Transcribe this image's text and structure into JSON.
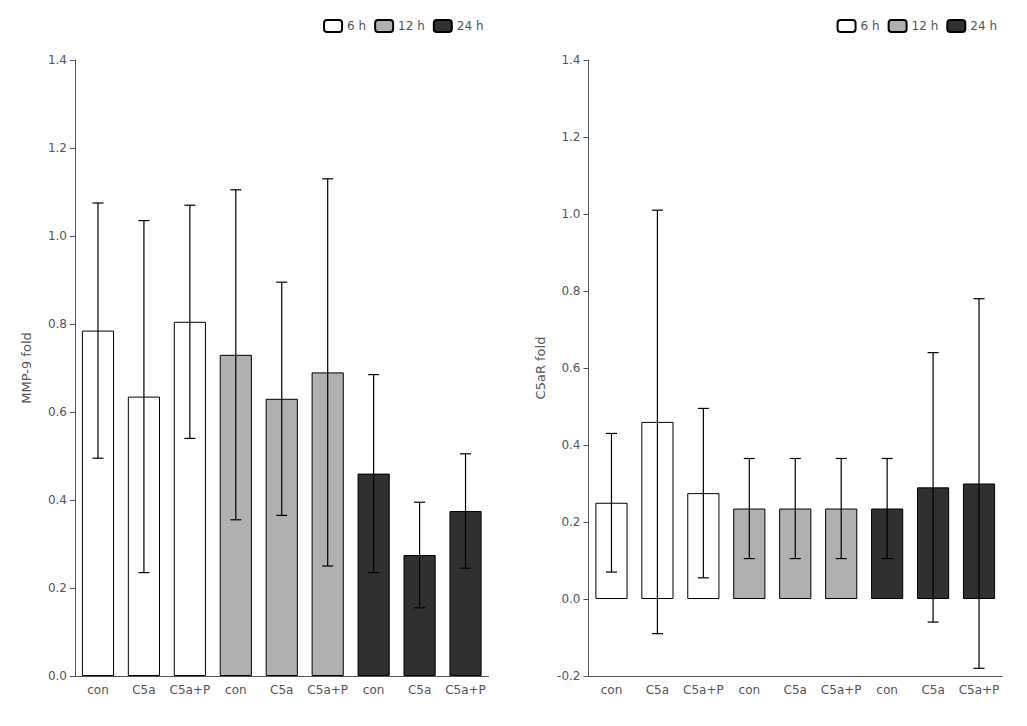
{
  "chart_data": [
    {
      "type": "bar",
      "ylabel": "MMP-9 fold",
      "categories": [
        "con",
        "C5a",
        "C5a+P",
        "con",
        "C5a",
        "C5a+P",
        "con",
        "C5a",
        "C5a+P"
      ],
      "series": [
        {
          "name": "6 h",
          "color": "#ffffff",
          "values": [
            0.785,
            0.635,
            0.805,
            null,
            null,
            null,
            null,
            null,
            null
          ],
          "errors": [
            0.29,
            0.4,
            0.265,
            null,
            null,
            null,
            null,
            null,
            null
          ]
        },
        {
          "name": "12 h",
          "color": "#b0b0b0",
          "values": [
            null,
            null,
            null,
            0.73,
            0.63,
            0.69,
            null,
            null,
            null
          ],
          "errors": [
            null,
            null,
            null,
            0.375,
            0.265,
            0.44,
            null,
            null,
            null
          ]
        },
        {
          "name": "24 h",
          "color": "#303030",
          "values": [
            null,
            null,
            null,
            null,
            null,
            null,
            0.46,
            0.275,
            0.375
          ],
          "errors": [
            null,
            null,
            null,
            null,
            null,
            null,
            0.225,
            0.12,
            0.13
          ]
        }
      ],
      "ylim": [
        0,
        1.4
      ],
      "yticks": [
        {
          "value": 0,
          "label": "0.0"
        },
        0.2,
        0.4,
        0.6,
        0.8,
        {
          "value": 1,
          "label": "1.0"
        },
        1.2,
        1.4
      ],
      "legend": "upper right",
      "grid": false
    },
    {
      "type": "bar",
      "ylabel": "C5aR fold",
      "categories": [
        "con",
        "C5a",
        "C5a+P",
        "con",
        "C5a",
        "C5a+P",
        "con",
        "C5a",
        "C5a+P"
      ],
      "series": [
        {
          "name": "6 h",
          "color": "#ffffff",
          "values": [
            0.25,
            0.46,
            0.275,
            null,
            null,
            null,
            null,
            null,
            null
          ],
          "errors": [
            0.18,
            0.55,
            0.22,
            null,
            null,
            null,
            null,
            null,
            null
          ]
        },
        {
          "name": "12 h",
          "color": "#b0b0b0",
          "values": [
            null,
            null,
            null,
            0.235,
            0.235,
            0.235,
            null,
            null,
            null
          ],
          "errors": [
            null,
            null,
            null,
            0.13,
            0.13,
            0.13,
            null,
            null,
            null
          ]
        },
        {
          "name": "24 h",
          "color": "#303030",
          "values": [
            null,
            null,
            null,
            null,
            null,
            null,
            0.235,
            0.29,
            0.3
          ],
          "errors": [
            null,
            null,
            null,
            null,
            null,
            null,
            0.13,
            0.35,
            0.48
          ]
        }
      ],
      "ylim": [
        -0.2,
        1.4
      ],
      "yticks": [
        -0.2,
        {
          "value": 0,
          "label": "0.0"
        },
        0.2,
        0.4,
        0.6,
        0.8,
        {
          "value": 1,
          "label": "1.0"
        },
        1.2,
        1.4
      ],
      "legend": "upper right",
      "grid": false
    }
  ]
}
